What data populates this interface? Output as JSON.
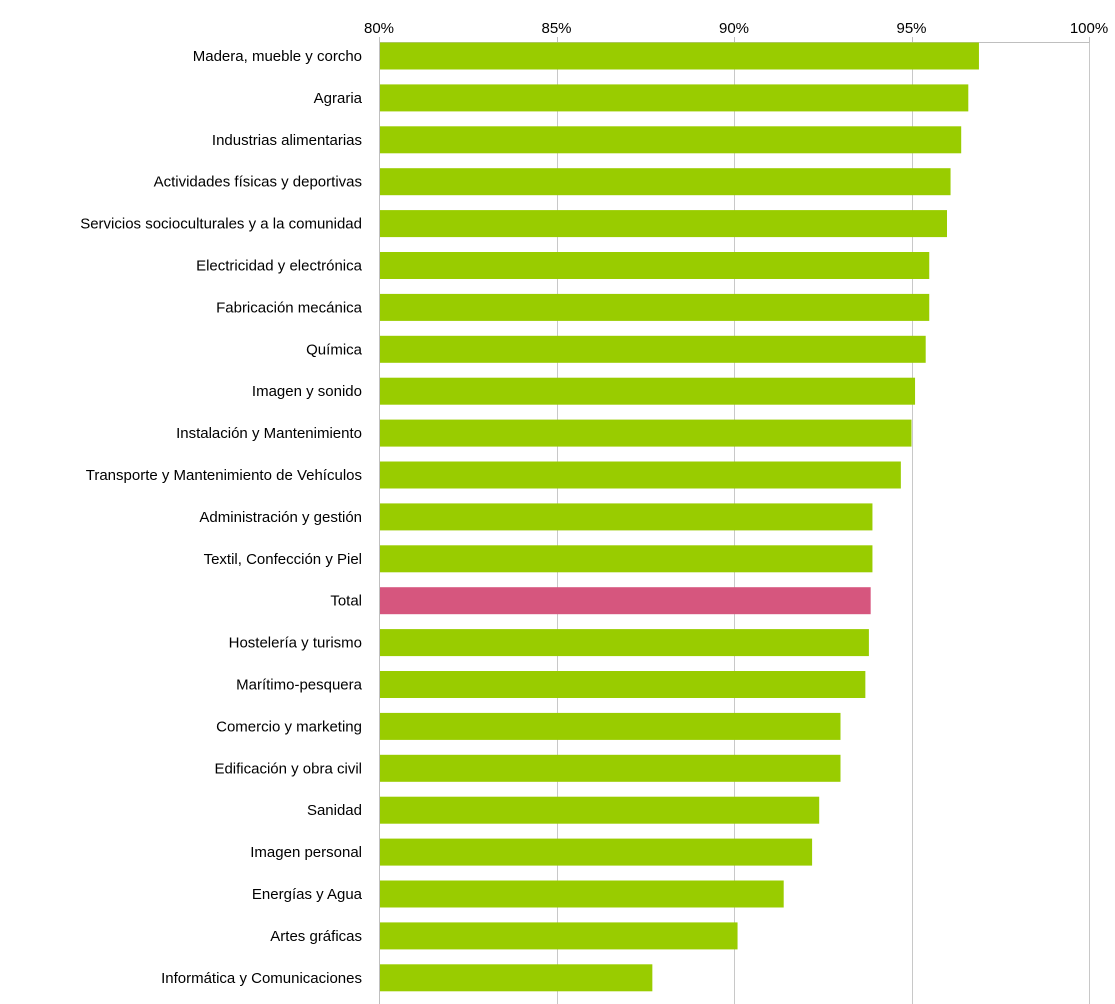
{
  "chart_data": {
    "type": "bar",
    "orientation": "horizontal",
    "categories": [
      "Madera, mueble y corcho",
      "Agraria",
      "Industrias alimentarias",
      "Actividades físicas y deportivas",
      "Servicios socioculturales y a la comunidad",
      "Electricidad y electrónica",
      "Fabricación mecánica",
      "Química",
      "Imagen y sonido",
      "Instalación y Mantenimiento",
      "Transporte y Mantenimiento de Vehículos",
      "Administración y gestión",
      "Textil, Confección y Piel",
      "Total",
      "Hostelería y turismo",
      "Marítimo-pesquera",
      "Comercio y marketing",
      "Edificación y obra civil",
      "Sanidad",
      "Imagen personal",
      "Energías y Agua",
      "Artes gráficas",
      "Informática y Comunicaciones"
    ],
    "values": [
      96.9,
      96.6,
      96.4,
      96.1,
      96.0,
      95.5,
      95.5,
      95.4,
      95.1,
      95.0,
      94.7,
      93.9,
      93.9,
      93.85,
      93.8,
      93.7,
      93.0,
      93.0,
      92.4,
      92.2,
      91.4,
      90.1,
      87.7
    ],
    "highlight_category": "Total",
    "colors": {
      "bar": "#99cc00",
      "highlight": "#d6567e",
      "grid": "#c8c8c8",
      "axis": "#bfbfbf"
    },
    "xlim": [
      80,
      100
    ],
    "x_ticks": [
      80,
      85,
      90,
      95,
      100
    ],
    "x_tick_labels": [
      "80%",
      "85%",
      "90%",
      "95%",
      "100%"
    ],
    "x_axis_position": "top",
    "grid": true,
    "legend": "none",
    "title": "",
    "xlabel": "",
    "ylabel": ""
  }
}
